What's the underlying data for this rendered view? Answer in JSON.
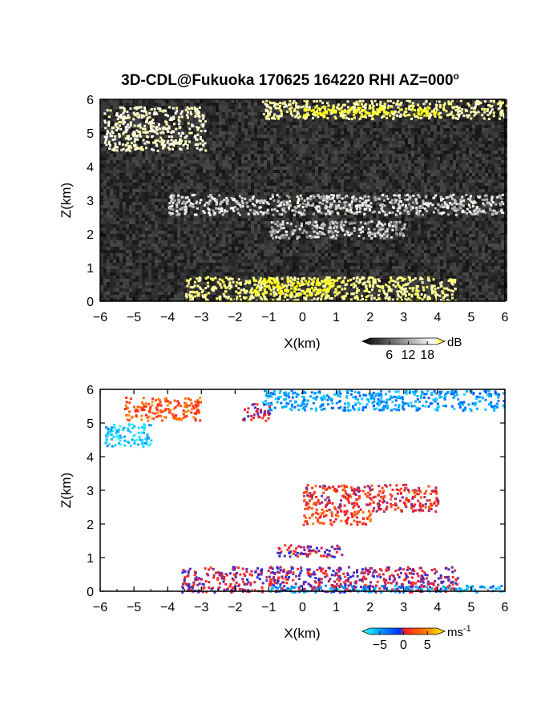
{
  "title": "3D-CDL@Fukuoka 170625 164220 RHI AZ=000",
  "title_suffix": "o",
  "chart_data": [
    {
      "type": "heatmap",
      "name": "reflectivity",
      "xlabel": "X(km)",
      "ylabel": "Z(km)",
      "xlim": [
        -6,
        6
      ],
      "ylim": [
        0,
        6
      ],
      "xticks": [
        -6,
        -5,
        -4,
        -3,
        -2,
        -1,
        0,
        1,
        2,
        3,
        4,
        5,
        6
      ],
      "yticks": [
        0,
        1,
        2,
        3,
        4,
        5,
        6
      ],
      "colorbar": {
        "label": "dB",
        "ticks": [
          6,
          12,
          18
        ],
        "range": [
          0,
          21
        ],
        "colors": [
          "#000000",
          "#ffffff",
          "#ffff00"
        ]
      },
      "features": [
        {
          "label": "upper layer",
          "x": [
            -1.2,
            6
          ],
          "z": [
            5.45,
            6.0
          ],
          "value": 14
        },
        {
          "label": "upper layer strong",
          "x": [
            0,
            4
          ],
          "z": [
            5.55,
            5.8
          ],
          "value": 20
        },
        {
          "label": "upper-left plume",
          "x": [
            -5.9,
            -2.9
          ],
          "z": [
            4.5,
            5.8
          ],
          "value": 12
        },
        {
          "label": "mid layer",
          "x": [
            -4,
            6
          ],
          "z": [
            2.6,
            3.2
          ],
          "value": 9
        },
        {
          "label": "low mid layer",
          "x": [
            -1,
            3
          ],
          "z": [
            1.9,
            2.4
          ],
          "value": 8
        },
        {
          "label": "boundary layer",
          "x": [
            -3.5,
            4.5
          ],
          "z": [
            0.0,
            0.75
          ],
          "value": 15
        },
        {
          "label": "boundary layer strong",
          "x": [
            -1.5,
            1
          ],
          "z": [
            0.2,
            0.7
          ],
          "value": 20
        }
      ]
    },
    {
      "type": "heatmap",
      "name": "doppler velocity",
      "xlabel": "X(km)",
      "ylabel": "Z(km)",
      "xlim": [
        -6,
        6
      ],
      "ylim": [
        0,
        6
      ],
      "xticks": [
        -6,
        -5,
        -4,
        -3,
        -2,
        -1,
        0,
        1,
        2,
        3,
        4,
        5,
        6
      ],
      "yticks": [
        0,
        1,
        2,
        3,
        4,
        5,
        6
      ],
      "colorbar": {
        "label": "ms",
        "label_sup": "-1",
        "ticks": [
          -5,
          0,
          5
        ],
        "range": [
          -7,
          7
        ],
        "colors": [
          "#40ffff",
          "#00a8ff",
          "#0030ff",
          "#ff2020",
          "#ff8000",
          "#ffff00"
        ]
      },
      "features": [
        {
          "label": "upper layer",
          "x": [
            -1.2,
            6
          ],
          "z": [
            5.4,
            6.0
          ],
          "value": -4
        },
        {
          "label": "upper-left plume",
          "x": [
            -5.9,
            -4.5
          ],
          "z": [
            4.3,
            5.0
          ],
          "value": -5
        },
        {
          "label": "upper-left cells",
          "x": [
            -5.3,
            -3
          ],
          "z": [
            5.1,
            5.8
          ],
          "value": 3
        },
        {
          "label": "cell near -1.5",
          "x": [
            -1.8,
            -1.0
          ],
          "z": [
            5.1,
            5.6
          ],
          "value": 0.5
        },
        {
          "label": "mid layer",
          "x": [
            0,
            4
          ],
          "z": [
            2.4,
            3.2
          ],
          "value": 1.5
        },
        {
          "label": "low mid layer",
          "x": [
            0,
            2
          ],
          "z": [
            2.0,
            2.4
          ],
          "value": 2.5
        },
        {
          "label": "cell near 1.3 km",
          "x": [
            -0.8,
            1.2
          ],
          "z": [
            1.05,
            1.4
          ],
          "value": 0.5
        },
        {
          "label": "boundary layer",
          "x": [
            -3.6,
            4.6
          ],
          "z": [
            0.0,
            0.75
          ],
          "value": 0.5
        },
        {
          "label": "near surface",
          "x": [
            -1,
            6
          ],
          "z": [
            0.0,
            0.2
          ],
          "value": -4
        }
      ]
    }
  ]
}
